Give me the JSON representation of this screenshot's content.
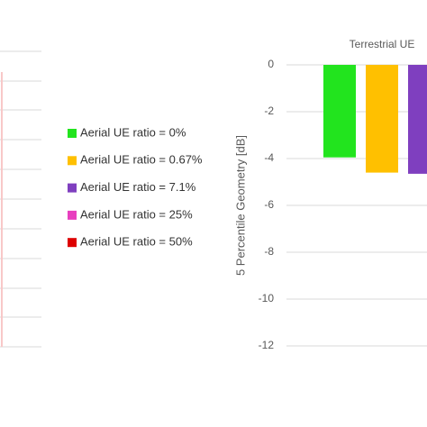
{
  "chart_data": {
    "type": "bar",
    "title": "Terrestrial UE",
    "y_label": "5 Percentile Geometry [dB]",
    "series": [
      {
        "name": "Aerial UE ratio = 0%",
        "color": "#22e41e",
        "values": [
          -3.95
        ]
      },
      {
        "name": "Aerial UE ratio = 0.67%",
        "color": "#ffc000",
        "values": [
          -4.6
        ]
      },
      {
        "name": "Aerial UE ratio = 7.1%",
        "color": "#7f3fbf",
        "values": [
          -4.65
        ]
      },
      {
        "name": "Aerial UE ratio = 25%",
        "color": "#e83fbf",
        "values": [
          null
        ]
      },
      {
        "name": "Aerial UE ratio = 50%",
        "color": "#dd0000",
        "values": [
          null
        ]
      }
    ],
    "ylim": [
      -12,
      0
    ],
    "yticks": [
      0,
      -2,
      -4,
      -6,
      -8,
      -10,
      -12
    ],
    "grid": true
  }
}
